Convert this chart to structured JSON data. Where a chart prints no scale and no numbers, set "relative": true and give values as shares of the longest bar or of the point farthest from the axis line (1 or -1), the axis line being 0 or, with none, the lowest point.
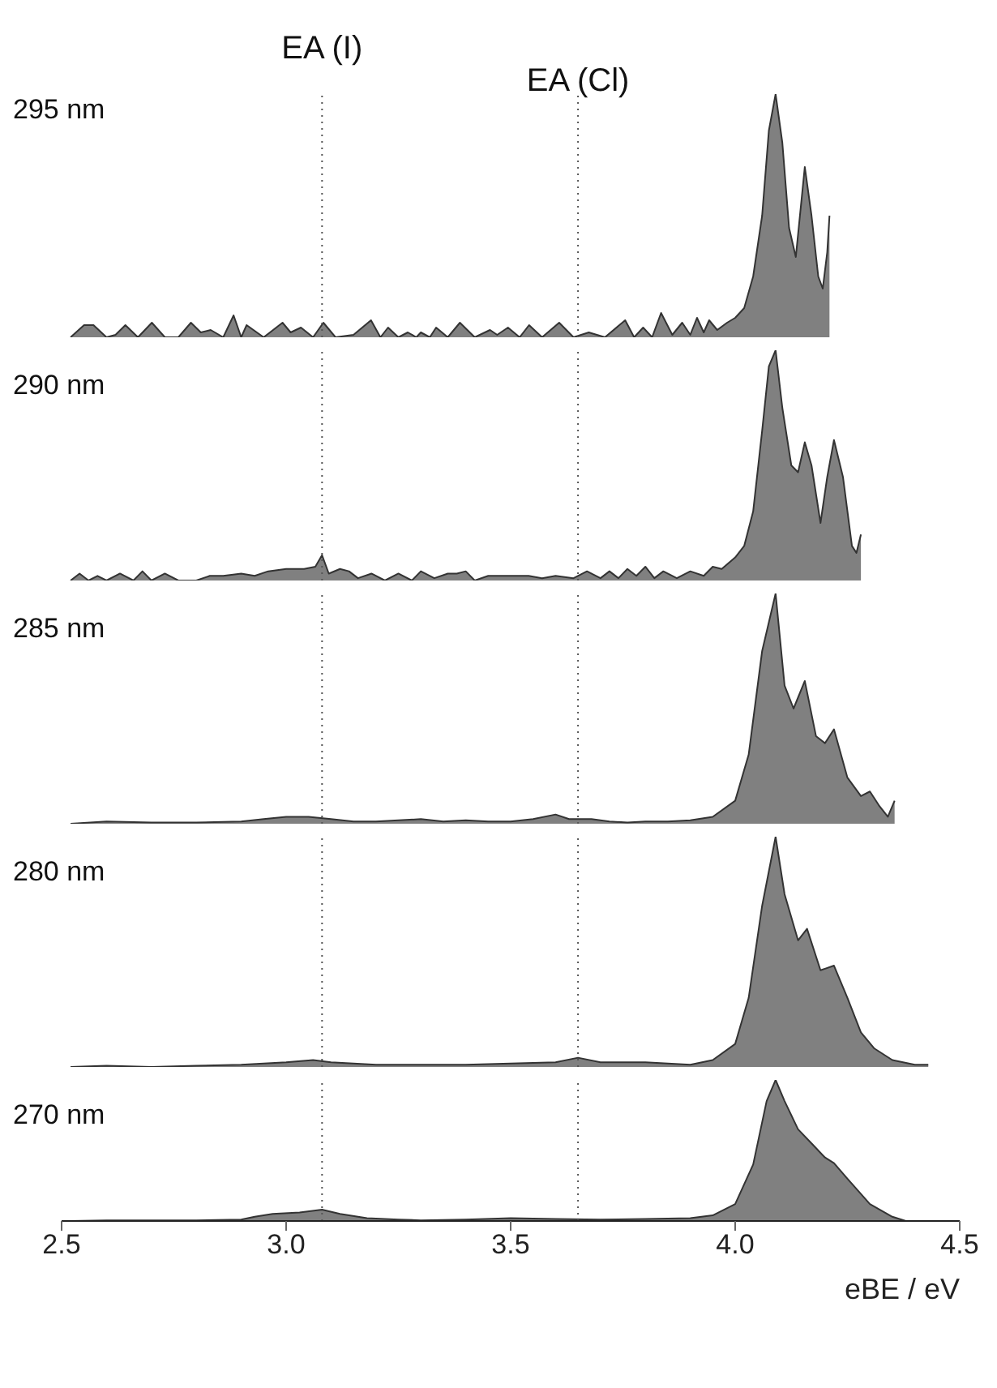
{
  "chart_data": [
    {
      "type": "area",
      "relative": true,
      "title": "295 nm",
      "xlim": [
        2.5,
        4.5
      ],
      "tick_labels": false,
      "ref_lines": [
        {
          "axis": "x",
          "value": 3.08,
          "label": "EA (I)",
          "line_style": "dotted"
        },
        {
          "axis": "x",
          "value": 3.65,
          "label": "EA (Cl)",
          "line_style": "dotted"
        }
      ],
      "x": [
        2.52,
        2.55,
        2.571,
        2.6,
        2.62,
        2.642,
        2.67,
        2.701,
        2.73,
        2.76,
        2.788,
        2.81,
        2.832,
        2.86,
        2.883,
        2.9,
        2.912,
        2.95,
        2.992,
        3.01,
        3.033,
        3.06,
        3.083,
        3.11,
        3.15,
        3.189,
        3.21,
        3.227,
        3.25,
        3.271,
        3.29,
        3.3,
        3.32,
        3.334,
        3.36,
        3.387,
        3.42,
        3.454,
        3.47,
        3.494,
        3.52,
        3.541,
        3.57,
        3.608,
        3.64,
        3.674,
        3.71,
        3.755,
        3.775,
        3.795,
        3.815,
        3.835,
        3.86,
        3.882,
        3.9,
        3.915,
        3.93,
        3.942,
        3.96,
        3.982,
        4.0,
        4.02,
        4.04,
        4.06,
        4.075,
        4.09,
        4.105,
        4.12,
        4.135,
        4.155,
        4.17,
        4.185,
        4.195,
        4.205,
        4.21
      ],
      "series": [
        {
          "color": "#808080",
          "values": [
            0,
            0.05,
            0.05,
            0,
            0.01,
            0.05,
            0,
            0.06,
            0,
            0,
            0.06,
            0.02,
            0.03,
            0,
            0.09,
            0,
            0.05,
            0,
            0.06,
            0.02,
            0.04,
            0,
            0.06,
            0,
            0.01,
            0.07,
            0,
            0.04,
            0,
            0.02,
            0,
            0.02,
            0,
            0.04,
            0,
            0.06,
            0,
            0.03,
            0.01,
            0.04,
            0,
            0.05,
            0,
            0.06,
            0,
            0.02,
            0,
            0.07,
            0,
            0.04,
            0,
            0.1,
            0.01,
            0.06,
            0.01,
            0.08,
            0.02,
            0.07,
            0.03,
            0.06,
            0.08,
            0.12,
            0.25,
            0.5,
            0.85,
            1.0,
            0.8,
            0.45,
            0.33,
            0.7,
            0.5,
            0.25,
            0.2,
            0.35,
            0.5
          ]
        }
      ]
    },
    {
      "type": "area",
      "relative": true,
      "title": "290 nm",
      "xlim": [
        2.5,
        4.5
      ],
      "tick_labels": false,
      "ref_lines": [
        {
          "axis": "x",
          "value": 3.08,
          "line_style": "dotted"
        },
        {
          "axis": "x",
          "value": 3.65,
          "line_style": "dotted"
        }
      ],
      "x": [
        2.52,
        2.54,
        2.56,
        2.58,
        2.6,
        2.63,
        2.66,
        2.68,
        2.7,
        2.73,
        2.76,
        2.8,
        2.83,
        2.86,
        2.9,
        2.93,
        2.96,
        3.0,
        3.04,
        3.065,
        3.08,
        3.095,
        3.12,
        3.14,
        3.16,
        3.19,
        3.22,
        3.25,
        3.28,
        3.3,
        3.33,
        3.36,
        3.38,
        3.4,
        3.42,
        3.45,
        3.48,
        3.5,
        3.54,
        3.57,
        3.6,
        3.64,
        3.67,
        3.7,
        3.72,
        3.74,
        3.76,
        3.78,
        3.8,
        3.82,
        3.84,
        3.87,
        3.9,
        3.93,
        3.95,
        3.97,
        4.0,
        4.02,
        4.04,
        4.06,
        4.075,
        4.09,
        4.105,
        4.125,
        4.14,
        4.155,
        4.17,
        4.19,
        4.205,
        4.22,
        4.24,
        4.26,
        4.27,
        4.28
      ],
      "series": [
        {
          "color": "#808080",
          "values": [
            0,
            0.03,
            0,
            0.02,
            0,
            0.03,
            0,
            0.04,
            0,
            0.03,
            0,
            0,
            0.02,
            0.02,
            0.03,
            0.02,
            0.04,
            0.05,
            0.05,
            0.06,
            0.11,
            0.03,
            0.05,
            0.04,
            0.01,
            0.03,
            0,
            0.03,
            0,
            0.04,
            0.01,
            0.03,
            0.03,
            0.04,
            0,
            0.02,
            0.02,
            0.02,
            0.02,
            0.01,
            0.02,
            0.01,
            0.04,
            0.01,
            0.04,
            0.01,
            0.05,
            0.02,
            0.06,
            0.01,
            0.04,
            0.01,
            0.04,
            0.02,
            0.06,
            0.05,
            0.1,
            0.15,
            0.3,
            0.65,
            0.93,
            1.0,
            0.75,
            0.5,
            0.47,
            0.6,
            0.5,
            0.25,
            0.45,
            0.61,
            0.45,
            0.15,
            0.12,
            0.2
          ]
        }
      ]
    },
    {
      "type": "area",
      "relative": true,
      "title": "285 nm",
      "xlim": [
        2.5,
        4.5
      ],
      "tick_labels": false,
      "ref_lines": [
        {
          "axis": "x",
          "value": 3.08,
          "line_style": "dotted"
        },
        {
          "axis": "x",
          "value": 3.65,
          "line_style": "dotted"
        }
      ],
      "x": [
        2.52,
        2.6,
        2.7,
        2.8,
        2.9,
        2.95,
        3.0,
        3.05,
        3.1,
        3.15,
        3.2,
        3.25,
        3.3,
        3.35,
        3.4,
        3.45,
        3.5,
        3.55,
        3.6,
        3.63,
        3.68,
        3.72,
        3.76,
        3.8,
        3.85,
        3.9,
        3.95,
        4.0,
        4.03,
        4.06,
        4.09,
        4.11,
        4.13,
        4.155,
        4.18,
        4.2,
        4.22,
        4.25,
        4.28,
        4.3,
        4.32,
        4.34,
        4.355
      ],
      "series": [
        {
          "color": "#808080",
          "values": [
            0,
            0.01,
            0.005,
            0.005,
            0.01,
            0.02,
            0.03,
            0.03,
            0.02,
            0.01,
            0.01,
            0.015,
            0.02,
            0.01,
            0.015,
            0.01,
            0.01,
            0.02,
            0.04,
            0.02,
            0.02,
            0.01,
            0.005,
            0.01,
            0.01,
            0.015,
            0.03,
            0.1,
            0.3,
            0.75,
            1.0,
            0.6,
            0.5,
            0.62,
            0.38,
            0.35,
            0.41,
            0.2,
            0.12,
            0.14,
            0.08,
            0.03,
            0.1
          ]
        }
      ]
    },
    {
      "type": "area",
      "relative": true,
      "title": "280 nm",
      "xlim": [
        2.5,
        4.5
      ],
      "tick_labels": false,
      "ref_lines": [
        {
          "axis": "x",
          "value": 3.08,
          "line_style": "dotted"
        },
        {
          "axis": "x",
          "value": 3.65,
          "line_style": "dotted"
        }
      ],
      "x": [
        2.52,
        2.6,
        2.7,
        2.8,
        2.9,
        3.0,
        3.06,
        3.1,
        3.15,
        3.2,
        3.3,
        3.4,
        3.5,
        3.6,
        3.65,
        3.7,
        3.8,
        3.9,
        3.95,
        4.0,
        4.03,
        4.06,
        4.09,
        4.11,
        4.14,
        4.16,
        4.19,
        4.22,
        4.25,
        4.28,
        4.31,
        4.35,
        4.4,
        4.43
      ],
      "series": [
        {
          "color": "#808080",
          "values": [
            0,
            0.005,
            0,
            0.005,
            0.01,
            0.02,
            0.03,
            0.02,
            0.015,
            0.01,
            0.01,
            0.01,
            0.015,
            0.02,
            0.04,
            0.02,
            0.02,
            0.01,
            0.03,
            0.1,
            0.3,
            0.7,
            1.0,
            0.75,
            0.55,
            0.6,
            0.42,
            0.44,
            0.3,
            0.15,
            0.08,
            0.03,
            0.01,
            0.01
          ]
        }
      ]
    },
    {
      "type": "area",
      "relative": true,
      "title": "270 nm",
      "xlim": [
        2.5,
        4.5
      ],
      "tick_labels": "x",
      "xlabel": "eBE / eV",
      "xticks": [
        2.5,
        {
          "value": 3,
          "label": "3.0"
        },
        3.5,
        {
          "value": 4,
          "label": "4.0"
        },
        4.5
      ],
      "ref_lines": [
        {
          "axis": "x",
          "value": 3.08,
          "line_style": "dotted"
        },
        {
          "axis": "x",
          "value": 3.65,
          "line_style": "dotted"
        }
      ],
      "x": [
        2.52,
        2.6,
        2.7,
        2.8,
        2.9,
        2.93,
        2.97,
        3.03,
        3.08,
        3.12,
        3.18,
        3.25,
        3.3,
        3.4,
        3.5,
        3.6,
        3.7,
        3.8,
        3.9,
        3.95,
        4.0,
        4.04,
        4.07,
        4.09,
        4.11,
        4.14,
        4.17,
        4.2,
        4.22,
        4.25,
        4.3,
        4.35,
        4.38
      ],
      "series": [
        {
          "color": "#808080",
          "values": [
            0,
            0.005,
            0.005,
            0.005,
            0.01,
            0.03,
            0.05,
            0.06,
            0.08,
            0.05,
            0.02,
            0.01,
            0.005,
            0.01,
            0.02,
            0.015,
            0.01,
            0.015,
            0.02,
            0.04,
            0.12,
            0.4,
            0.85,
            1.0,
            0.85,
            0.65,
            0.55,
            0.45,
            0.41,
            0.3,
            0.12,
            0.03,
            0
          ]
        }
      ]
    }
  ]
}
